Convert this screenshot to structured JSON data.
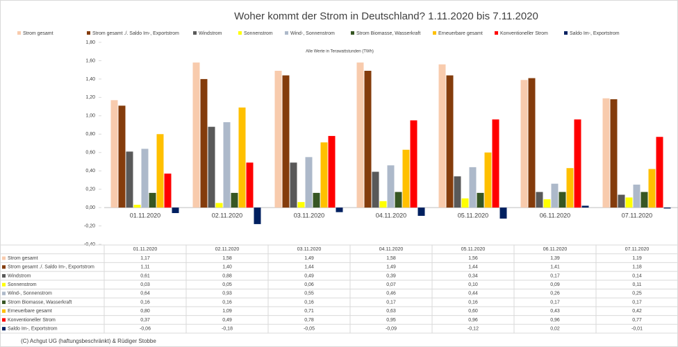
{
  "chart_data": {
    "type": "bar",
    "title": "Woher kommt der Strom in Deutschland? 1.11.2020 bis 7.11.2020",
    "subtitle": "Alle Werte in Terawattstunden (TWh)",
    "footer": "(C) Achgut UG (haftungsbeschränkt) & Rüdiger Stobbe",
    "categories": [
      "01.11.2020",
      "02.11.2020",
      "03.11.2020",
      "04.11.2020",
      "05.11.2020",
      "06.11.2020",
      "07.11.2020"
    ],
    "series": [
      {
        "name": "Strom gesamt",
        "color": "#f8cbad",
        "values": [
          1.17,
          1.58,
          1.49,
          1.58,
          1.56,
          1.39,
          1.19
        ],
        "value_labels": [
          "1,17",
          "1,58",
          "1,49",
          "1,58",
          "1,56",
          "1,39",
          "1,19"
        ]
      },
      {
        "name": "Strom gesamt ./. Saldo Im-, Exportstrom",
        "color": "#843c0c",
        "values": [
          1.11,
          1.4,
          1.44,
          1.49,
          1.44,
          1.41,
          1.18
        ],
        "value_labels": [
          "1,11",
          "1,40",
          "1,44",
          "1,49",
          "1,44",
          "1,41",
          "1,18"
        ]
      },
      {
        "name": "Windstrom",
        "color": "#595959",
        "values": [
          0.61,
          0.88,
          0.49,
          0.39,
          0.34,
          0.17,
          0.14
        ],
        "value_labels": [
          "0,61",
          "0,88",
          "0,49",
          "0,39",
          "0,34",
          "0,17",
          "0,14"
        ]
      },
      {
        "name": "Sonnenstrom",
        "color": "#ffff00",
        "values": [
          0.03,
          0.05,
          0.06,
          0.07,
          0.1,
          0.09,
          0.11
        ],
        "value_labels": [
          "0,03",
          "0,05",
          "0,06",
          "0,07",
          "0,10",
          "0,09",
          "0,11"
        ]
      },
      {
        "name": "Wind-, Sonnenstrom",
        "color": "#adb9ca",
        "values": [
          0.64,
          0.93,
          0.55,
          0.46,
          0.44,
          0.26,
          0.25
        ],
        "value_labels": [
          "0,64",
          "0,93",
          "0,55",
          "0,46",
          "0,44",
          "0,26",
          "0,25"
        ]
      },
      {
        "name": "Strom Biomasse, Wasserkraft",
        "color": "#375623",
        "values": [
          0.16,
          0.16,
          0.16,
          0.17,
          0.16,
          0.17,
          0.17
        ],
        "value_labels": [
          "0,16",
          "0,16",
          "0,16",
          "0,17",
          "0,16",
          "0,17",
          "0,17"
        ]
      },
      {
        "name": "Erneuerbare gesamt",
        "color": "#ffc000",
        "values": [
          0.8,
          1.09,
          0.71,
          0.63,
          0.6,
          0.43,
          0.42
        ],
        "value_labels": [
          "0,80",
          "1,09",
          "0,71",
          "0,63",
          "0,60",
          "0,43",
          "0,42"
        ]
      },
      {
        "name": "Konventioneller Strom",
        "color": "#ff0000",
        "values": [
          0.37,
          0.49,
          0.78,
          0.95,
          0.96,
          0.96,
          0.77
        ],
        "value_labels": [
          "0,37",
          "0,49",
          "0,78",
          "0,95",
          "0,96",
          "0,96",
          "0,77"
        ]
      },
      {
        "name": "Saldo Im-, Exportstrom",
        "color": "#002060",
        "values": [
          -0.06,
          -0.18,
          -0.05,
          -0.09,
          -0.12,
          0.02,
          -0.01
        ],
        "value_labels": [
          "-0,06",
          "-0,18",
          "-0,05",
          "-0,09",
          "-0,12",
          "0,02",
          "-0,01"
        ]
      }
    ],
    "ylim": [
      -0.4,
      1.8
    ],
    "yticks": [
      {
        "value": -0.4,
        "label": "-0,40"
      },
      {
        "value": -0.2,
        "label": "-0,20"
      },
      {
        "value": 0,
        "label": "0,00"
      },
      {
        "value": 0.2,
        "label": "0,20"
      },
      {
        "value": 0.4,
        "label": "0,40"
      },
      {
        "value": 0.6,
        "label": "0,60"
      },
      {
        "value": 0.8,
        "label": "0,80"
      },
      {
        "value": 1.0,
        "label": "1,00"
      },
      {
        "value": 1.2,
        "label": "1,20"
      },
      {
        "value": 1.4,
        "label": "1,40"
      },
      {
        "value": 1.6,
        "label": "1,60"
      },
      {
        "value": 1.8,
        "label": "1,80"
      }
    ],
    "grid": false
  }
}
